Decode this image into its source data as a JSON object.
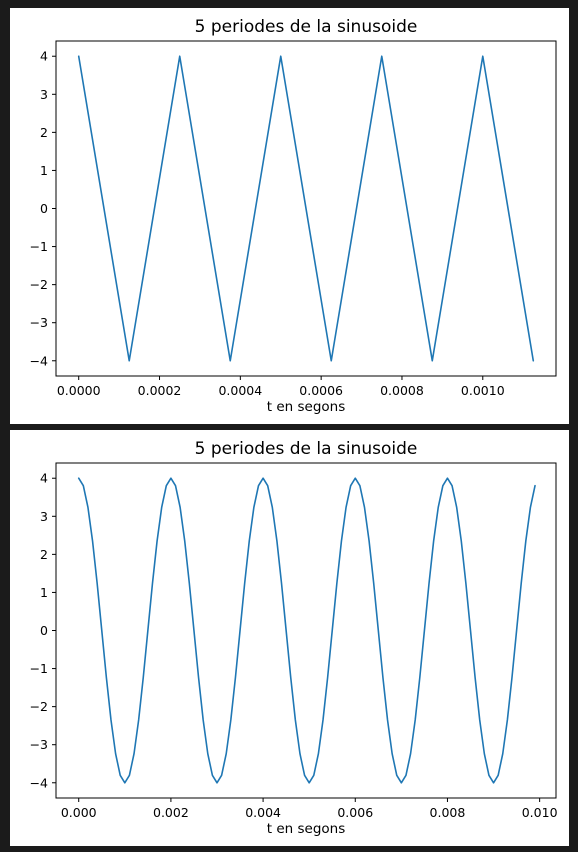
{
  "figure": {
    "background": "#1b1b1b",
    "line_color": "#1f77b4"
  },
  "chart_data": [
    {
      "type": "line",
      "title": "5 periodes de la sinusoide",
      "xlabel": "t en segons",
      "ylabel": "",
      "xlim": [
        -5.62e-05,
        0.0011812
      ],
      "ylim": [
        -4.4,
        4.4
      ],
      "grid": false,
      "x_ticks": [
        0.0,
        0.0002,
        0.0004,
        0.0006,
        0.0008,
        0.001
      ],
      "x_tick_labels": [
        "0.0000",
        "0.0002",
        "0.0004",
        "0.0006",
        "0.0008",
        "0.0010"
      ],
      "y_ticks": [
        4,
        3,
        2,
        1,
        0,
        -1,
        -2,
        -3,
        -4
      ],
      "y_tick_labels": [
        "4",
        "3",
        "2",
        "1",
        "0",
        "−1",
        "−2",
        "−3",
        "−4"
      ],
      "series": [
        {
          "x": [
            0.0,
            0.000125,
            0.00025,
            0.000375,
            0.0005,
            0.000625,
            0.00075,
            0.000875,
            0.001,
            0.001125
          ],
          "values": [
            4,
            -4,
            4,
            -4,
            4,
            -4,
            4,
            -4,
            4,
            -4
          ]
        }
      ]
    },
    {
      "type": "line",
      "title": "5 periodes de la sinusoide",
      "xlabel": "t en segons",
      "ylabel": "",
      "xlim": [
        -0.000493,
        0.010355
      ],
      "ylim": [
        -4.4,
        4.4
      ],
      "grid": false,
      "x_ticks": [
        0.0,
        0.002,
        0.004,
        0.006,
        0.008,
        0.01
      ],
      "x_tick_labels": [
        "0.000",
        "0.002",
        "0.004",
        "0.006",
        "0.008",
        "0.010"
      ],
      "y_ticks": [
        4,
        3,
        2,
        1,
        0,
        -1,
        -2,
        -3,
        -4
      ],
      "y_tick_labels": [
        "4",
        "3",
        "2",
        "1",
        "0",
        "−1",
        "−2",
        "−3",
        "−4"
      ],
      "series": [
        {
          "x": [
            0.0,
            0.0001,
            0.0002,
            0.0003,
            0.0004,
            0.0005,
            0.0006,
            0.0007,
            0.0008,
            0.0009,
            0.001,
            0.0011,
            0.0012,
            0.0013,
            0.0014,
            0.0015,
            0.0016,
            0.0017,
            0.0018,
            0.0019,
            0.002,
            0.0021,
            0.0022,
            0.0023,
            0.0024,
            0.0025,
            0.0026,
            0.0027,
            0.0028,
            0.0029,
            0.003,
            0.0031,
            0.0032,
            0.0033,
            0.0034,
            0.0035,
            0.0036,
            0.0037,
            0.0038,
            0.0039,
            0.004,
            0.0041,
            0.0042,
            0.0043,
            0.0044,
            0.0045,
            0.0046,
            0.0047,
            0.0048,
            0.0049,
            0.005,
            0.0051,
            0.0052,
            0.0053,
            0.0054,
            0.0055,
            0.0056,
            0.0057,
            0.0058,
            0.0059,
            0.006,
            0.0061,
            0.0062,
            0.0063,
            0.0064,
            0.0065,
            0.0066,
            0.0067,
            0.0068,
            0.0069,
            0.007,
            0.0071,
            0.0072,
            0.0073,
            0.0074,
            0.0075,
            0.0076,
            0.0077,
            0.0078,
            0.0079,
            0.008,
            0.0081,
            0.0082,
            0.0083,
            0.0084,
            0.0085,
            0.0086,
            0.0087,
            0.0088,
            0.0089,
            0.009,
            0.0091,
            0.0092,
            0.0093,
            0.0094,
            0.0095,
            0.0096,
            0.0097,
            0.0098,
            0.0099
          ],
          "values": [
            4.0,
            3.804,
            3.236,
            2.351,
            1.236,
            0.0,
            -1.236,
            -2.351,
            -3.236,
            -3.804,
            -4.0,
            -3.804,
            -3.236,
            -2.351,
            -1.236,
            0.0,
            1.236,
            2.351,
            3.236,
            3.804,
            4.0,
            3.804,
            3.236,
            2.351,
            1.236,
            0.0,
            -1.236,
            -2.351,
            -3.236,
            -3.804,
            -4.0,
            -3.804,
            -3.236,
            -2.351,
            -1.236,
            0.0,
            1.236,
            2.351,
            3.236,
            3.804,
            4.0,
            3.804,
            3.236,
            2.351,
            1.236,
            0.0,
            -1.236,
            -2.351,
            -3.236,
            -3.804,
            -4.0,
            -3.804,
            -3.236,
            -2.351,
            -1.236,
            0.0,
            1.236,
            2.351,
            3.236,
            3.804,
            4.0,
            3.804,
            3.236,
            2.351,
            1.236,
            0.0,
            -1.236,
            -2.351,
            -3.236,
            -3.804,
            -4.0,
            -3.804,
            -3.236,
            -2.351,
            -1.236,
            0.0,
            1.236,
            2.351,
            3.236,
            3.804,
            4.0,
            3.804,
            3.236,
            2.351,
            1.236,
            0.0,
            -1.236,
            -2.351,
            -3.236,
            -3.804,
            -4.0,
            -3.804,
            -3.236,
            -2.351,
            -1.236,
            0.0,
            1.236,
            2.351,
            3.236,
            3.804
          ]
        }
      ]
    }
  ]
}
